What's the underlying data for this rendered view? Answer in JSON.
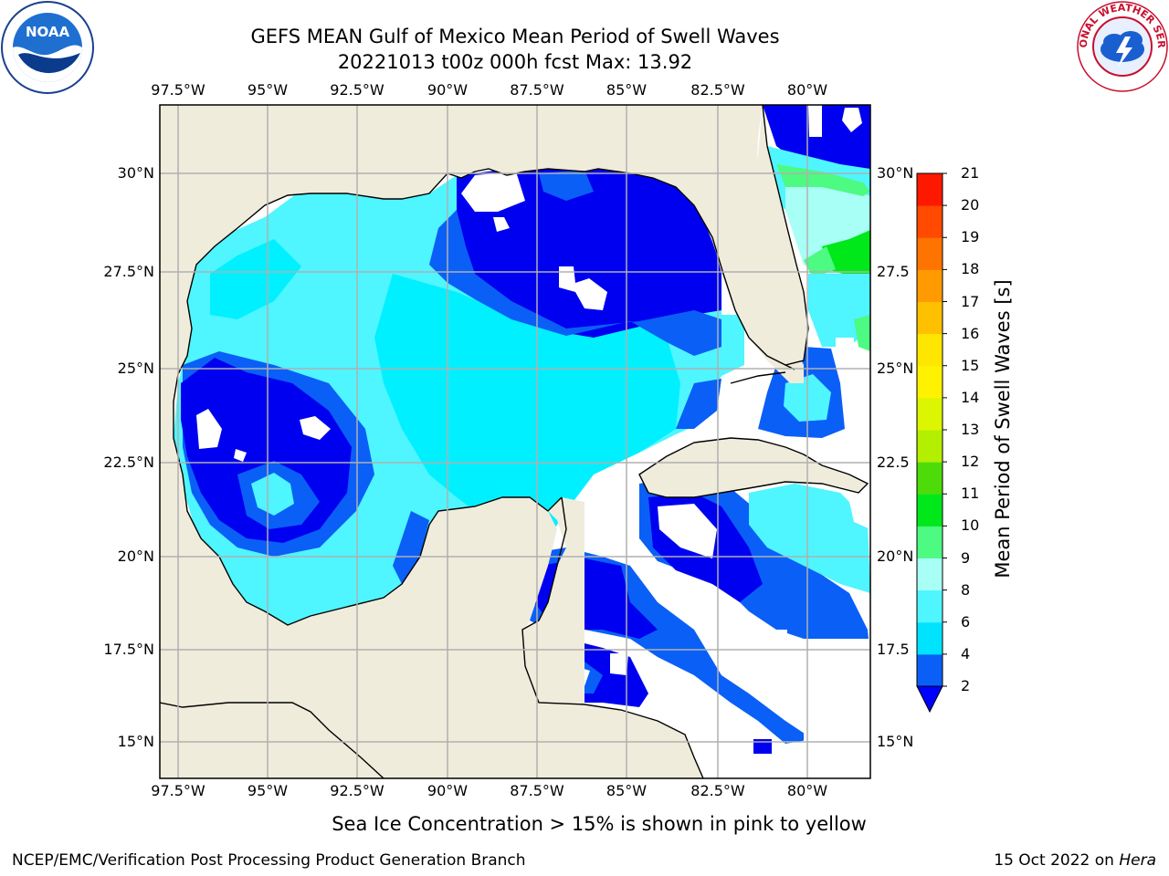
{
  "title_line1": "GEFS MEAN Gulf of Mexico Mean Period of Swell Waves",
  "title_line2": "20221013 t00z 000h fcst   Max: 13.92",
  "lon_labels": [
    "97.5°W",
    "95°W",
    "92.5°W",
    "90°W",
    "87.5°W",
    "85°W",
    "82.5°W",
    "80°W"
  ],
  "lat_labels_left": [
    "30°N",
    "27.5°N",
    "25°N",
    "22.5°N",
    "20°N",
    "17.5°N",
    "15°N"
  ],
  "lat_labels_right": [
    "30°N",
    "27.5",
    "25°N",
    "22.5",
    "20°N",
    "17.5",
    "15°N"
  ],
  "colorbar": {
    "label": "Mean Period of Swell Waves [s]",
    "ticks": [
      "2",
      "4",
      "6",
      "8",
      "9",
      "10",
      "11",
      "12",
      "13",
      "14",
      "15",
      "16",
      "17",
      "18",
      "19",
      "20",
      "21"
    ],
    "colors": [
      "#0a5ff7",
      "#00e3ff",
      "#4ff5ff",
      "#a8fff5",
      "#4dfa82",
      "#00e81a",
      "#4ddc0a",
      "#b4ee00",
      "#dcf500",
      "#fff200",
      "#ffe600",
      "#ffc000",
      "#ff9a00",
      "#ff7400",
      "#ff4a00",
      "#ff1800"
    ],
    "extend_color": "#0000ff"
  },
  "colors": {
    "land": "#efecdc",
    "deep_blue": "#0000f0",
    "mid_blue": "#0a5ff7",
    "cyan": "#00f0ff",
    "light_cyan": "#4ff5ff",
    "pale_cyan": "#a8fff5",
    "green": "#00e81a",
    "light_green": "#4dfa82",
    "grid": "#b0b0b0"
  },
  "caption": "Sea Ice Concentration > 15% is shown in pink to yellow",
  "footer_left": "NCEP/EMC/Verification Post Processing Product Generation Branch",
  "footer_right_date": "15 Oct 2022 on ",
  "footer_right_machine": "Hera",
  "logos": {
    "noaa": "NOAA",
    "nws": "NATIONAL WEATHER SERVICE"
  }
}
